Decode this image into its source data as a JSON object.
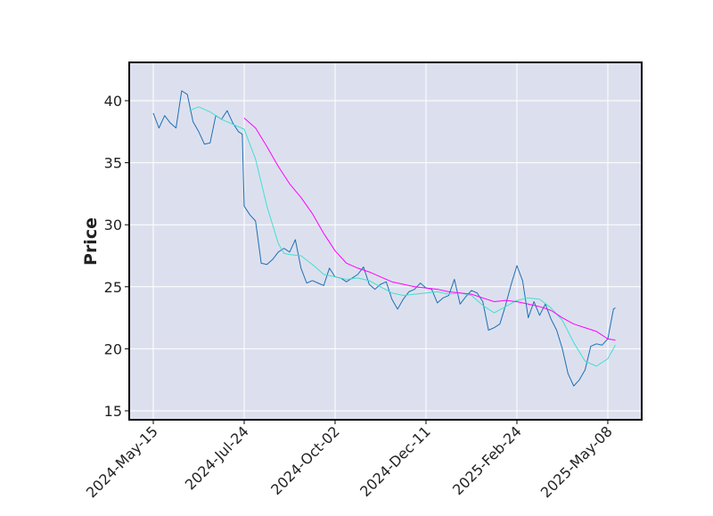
{
  "chart_data": {
    "type": "line",
    "ylabel": "Price",
    "xlim": [
      -12.7,
      257.9
    ],
    "ylim": [
      14.28,
      43.09
    ],
    "xticks": [
      {
        "value": 0,
        "label": "2024-May-15"
      },
      {
        "value": 48,
        "label": "2024-Jul-24"
      },
      {
        "value": 96,
        "label": "2024-Oct-02"
      },
      {
        "value": 144,
        "label": "2024-Dec-11"
      },
      {
        "value": 192,
        "label": "2025-Feb-24"
      },
      {
        "value": 240,
        "label": "2025-May-08"
      }
    ],
    "yticks": [
      15,
      20,
      25,
      30,
      35,
      40
    ],
    "grid": true,
    "background": "#dce0ee",
    "series": [
      {
        "color": "#1f6fb5",
        "width": 1,
        "x": [
          0,
          3,
          6,
          9,
          12,
          15,
          18,
          21,
          24,
          27,
          30,
          33,
          36,
          39,
          42,
          45,
          47,
          48,
          51,
          54,
          57,
          60,
          63,
          66,
          69,
          72,
          75,
          78,
          81,
          84,
          87,
          90,
          93,
          96,
          99,
          102,
          105,
          108,
          111,
          114,
          117,
          120,
          123,
          126,
          129,
          132,
          135,
          138,
          141,
          144,
          147,
          150,
          153,
          156,
          159,
          162,
          165,
          168,
          171,
          174,
          177,
          180,
          183,
          186,
          189,
          192,
          195,
          198,
          201,
          204,
          207,
          210,
          213,
          216,
          219,
          222,
          225,
          228,
          231,
          234,
          237,
          240,
          243,
          244
        ],
        "values": [
          39,
          37.8,
          38.8,
          38.2,
          37.8,
          40.8,
          40.5,
          38.3,
          37.5,
          36.5,
          36.6,
          38.8,
          38.5,
          39.2,
          38.2,
          37.5,
          37.3,
          31.5,
          30.8,
          30.3,
          26.9,
          26.8,
          27.2,
          27.8,
          28.1,
          27.8,
          28.8,
          26.5,
          25.3,
          25.5,
          25.3,
          25.1,
          26.5,
          25.8,
          25.7,
          25.4,
          25.7,
          26.0,
          26.6,
          25.2,
          24.8,
          25.2,
          25.4,
          24.0,
          23.2,
          24.0,
          24.6,
          24.8,
          25.3,
          24.9,
          24.8,
          23.7,
          24.1,
          24.3,
          25.6,
          23.6,
          24.2,
          24.7,
          24.5,
          23.8,
          21.5,
          21.7,
          22.0,
          23.5,
          25.2,
          26.7,
          25.5,
          22.5,
          23.8,
          22.7,
          23.6,
          22.4,
          21.5,
          20.0,
          18.0,
          17.0,
          17.5,
          18.3,
          20.2,
          20.4,
          20.3,
          20.8,
          23.2,
          23.3
        ]
      },
      {
        "color": "#40e0d0",
        "width": 1,
        "x": [
          19,
          24,
          30,
          36,
          42,
          48,
          54,
          60,
          66,
          69,
          72,
          78,
          84,
          90,
          96,
          102,
          108,
          114,
          120,
          126,
          132,
          138,
          144,
          150,
          156,
          162,
          168,
          174,
          180,
          186,
          192,
          198,
          204,
          210,
          216,
          222,
          228,
          234,
          240,
          244
        ],
        "values": [
          39.2,
          39.5,
          39.1,
          38.5,
          38.1,
          37.7,
          35.3,
          31.5,
          28.5,
          27.7,
          27.6,
          27.5,
          26.8,
          26.0,
          25.8,
          25.6,
          25.7,
          25.5,
          25.0,
          24.5,
          24.3,
          24.4,
          24.5,
          24.6,
          24.4,
          24.5,
          24.3,
          23.5,
          22.9,
          23.4,
          23.9,
          24.1,
          24.0,
          23.3,
          22.3,
          20.5,
          19.0,
          18.6,
          19.2,
          20.3
        ]
      },
      {
        "color": "#ff00ff",
        "width": 1,
        "x": [
          48,
          54,
          60,
          66,
          72,
          78,
          84,
          90,
          96,
          102,
          108,
          114,
          120,
          126,
          132,
          138,
          144,
          150,
          156,
          162,
          168,
          174,
          180,
          186,
          192,
          198,
          204,
          210,
          216,
          222,
          228,
          234,
          240,
          244
        ],
        "values": [
          38.6,
          37.8,
          36.3,
          34.7,
          33.3,
          32.2,
          30.9,
          29.3,
          27.9,
          26.9,
          26.5,
          26.2,
          25.8,
          25.4,
          25.2,
          25.0,
          24.9,
          24.8,
          24.6,
          24.5,
          24.4,
          24.1,
          23.8,
          23.9,
          23.8,
          23.6,
          23.4,
          23.1,
          22.5,
          22.0,
          21.7,
          21.4,
          20.8,
          20.7
        ]
      }
    ]
  }
}
